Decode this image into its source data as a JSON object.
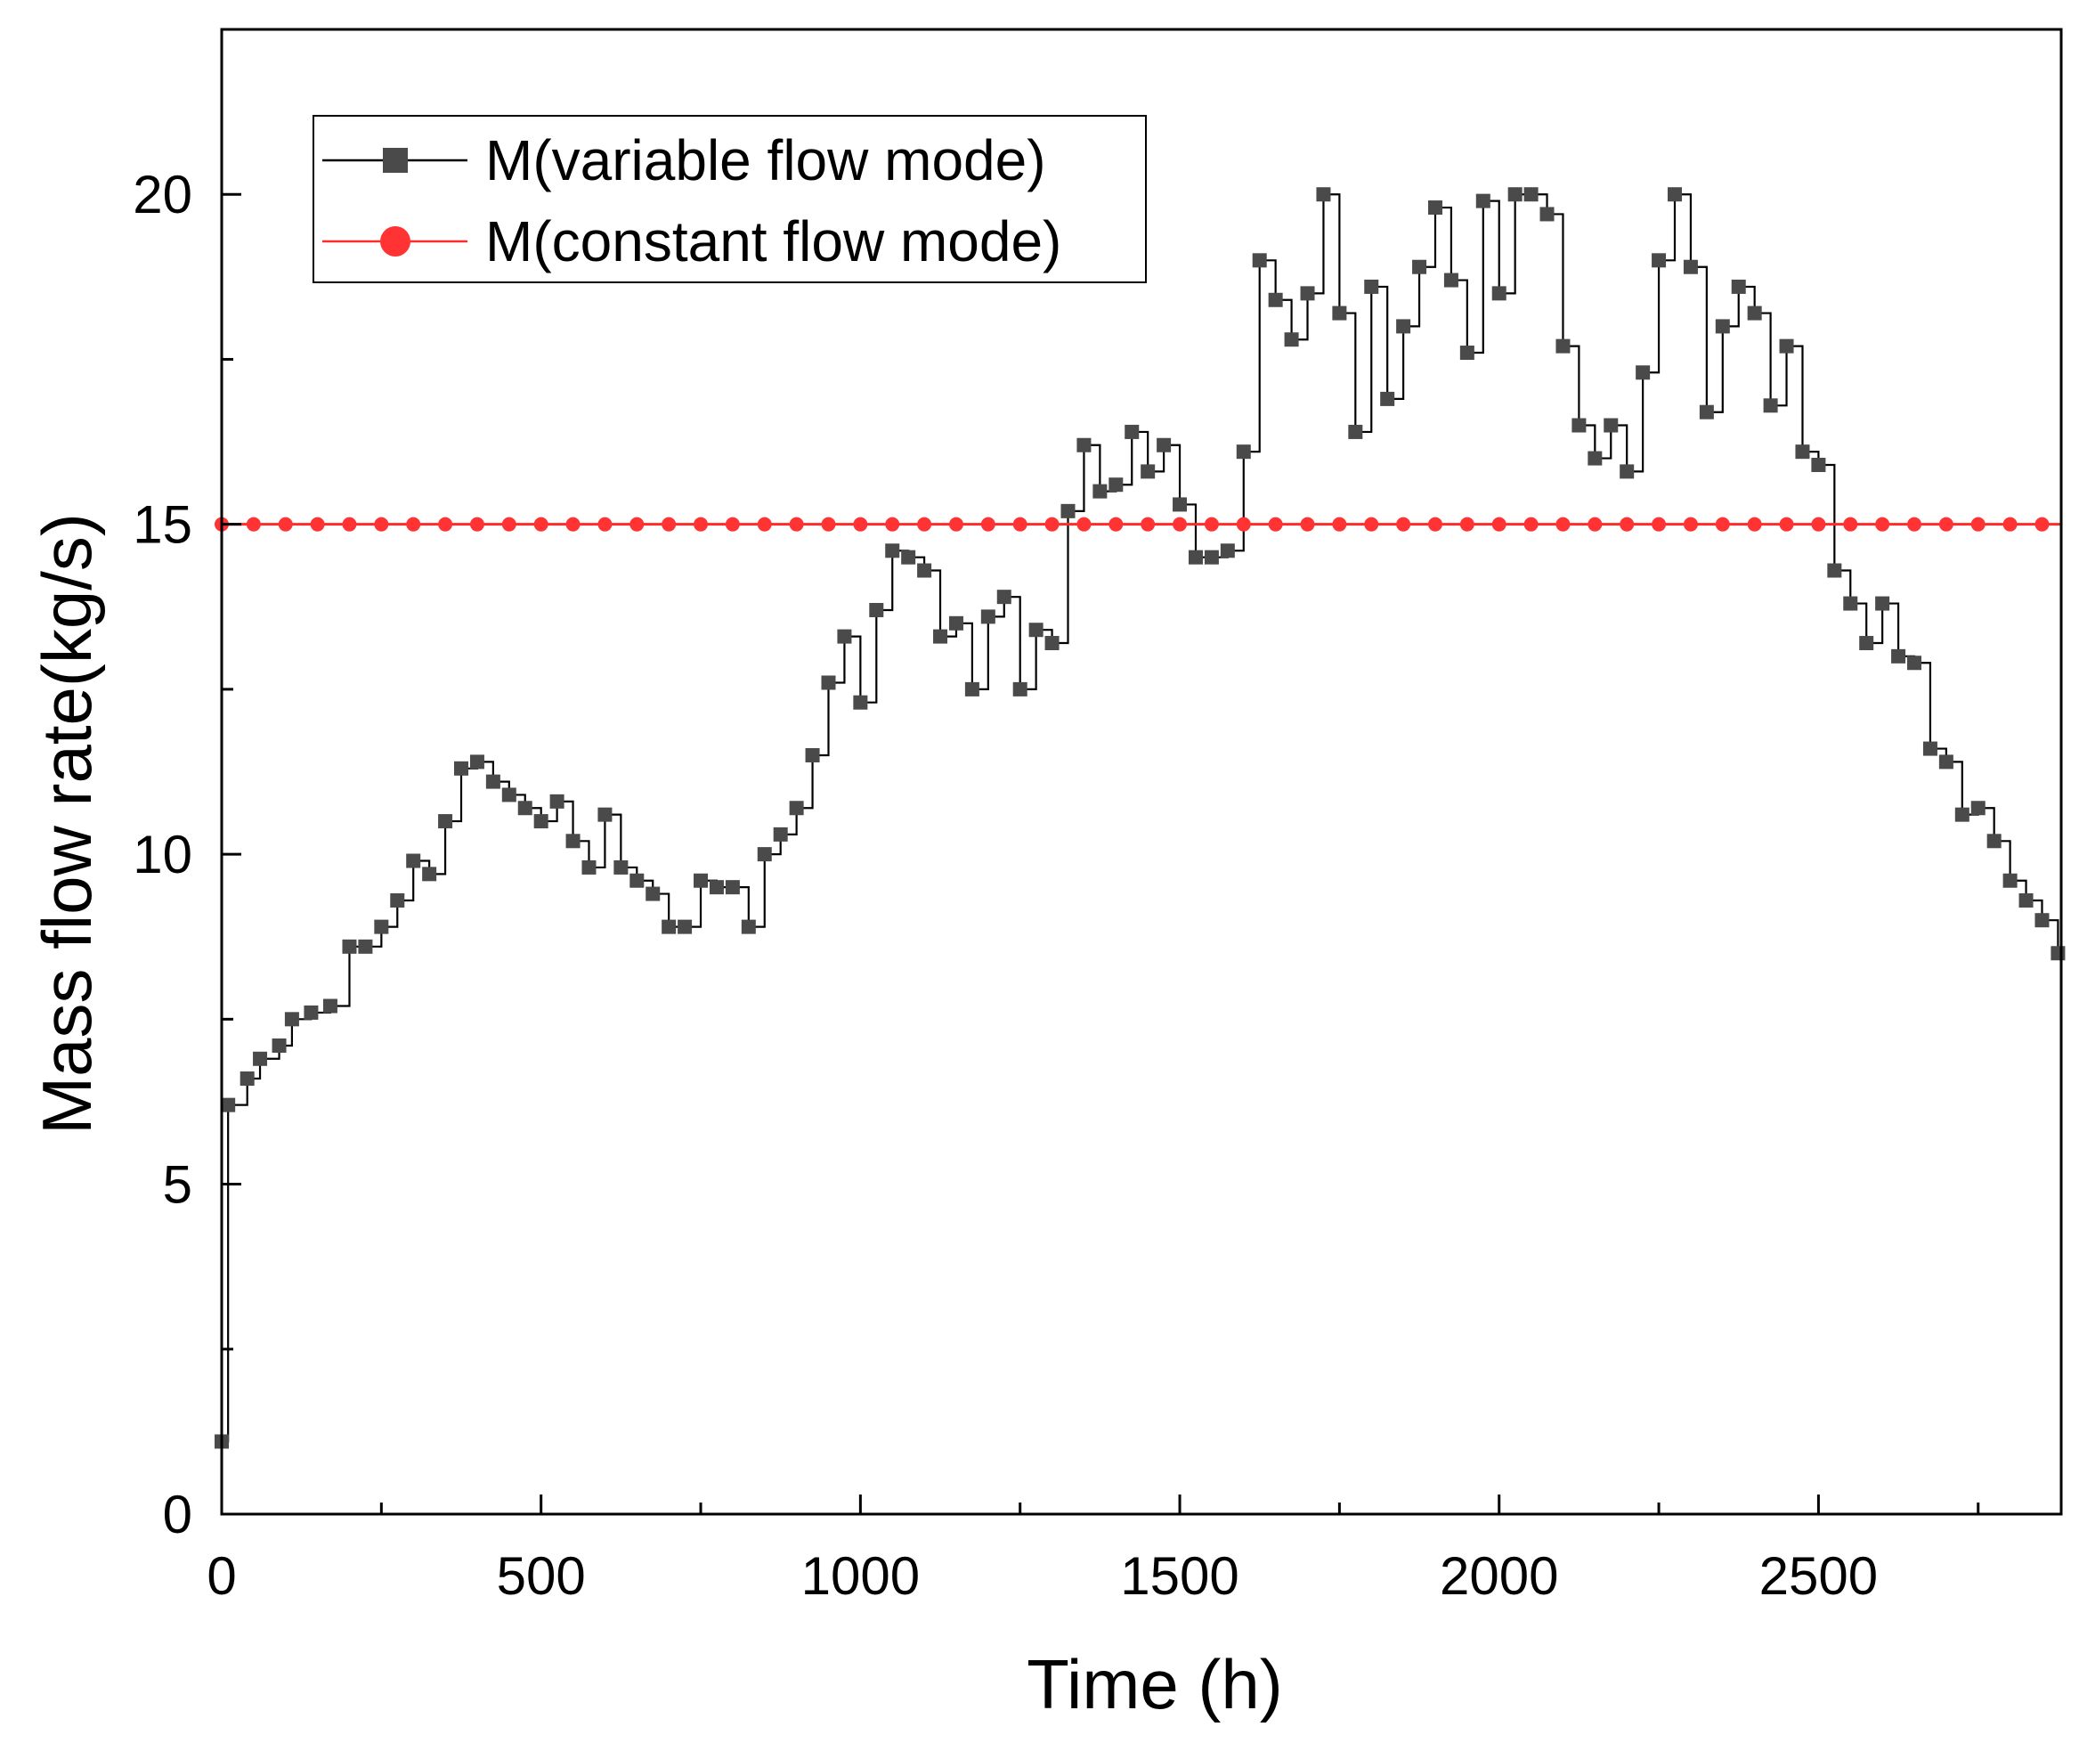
{
  "chart_data": {
    "type": "line",
    "xlabel": "Time (h)",
    "ylabel": "Mass flow rate(kg/s)",
    "xlim": [
      0,
      2880
    ],
    "ylim": [
      0,
      22.5
    ],
    "x_ticks": [
      "0",
      "500",
      "1000",
      "1500",
      "2000",
      "2500"
    ],
    "y_ticks": [
      "0",
      "5",
      "10",
      "15",
      "20"
    ],
    "legend_position": "top-left",
    "series": [
      {
        "name": "M(variable flow mode)",
        "style": "step",
        "color": "#000000",
        "marker": "square",
        "marker_color": "#4a4a4a",
        "x": [
          0,
          10,
          40,
          60,
          90,
          110,
          140,
          170,
          200,
          225,
          250,
          275,
          300,
          325,
          350,
          375,
          400,
          425,
          450,
          475,
          500,
          525,
          550,
          575,
          600,
          625,
          650,
          675,
          700,
          725,
          750,
          775,
          800,
          825,
          850,
          875,
          900,
          925,
          950,
          975,
          1000,
          1025,
          1050,
          1075,
          1100,
          1125,
          1150,
          1175,
          1200,
          1225,
          1250,
          1275,
          1300,
          1325,
          1350,
          1375,
          1400,
          1425,
          1450,
          1475,
          1500,
          1525,
          1550,
          1575,
          1600,
          1625,
          1650,
          1675,
          1700,
          1725,
          1750,
          1775,
          1800,
          1825,
          1850,
          1875,
          1900,
          1925,
          1950,
          1975,
          2000,
          2025,
          2050,
          2075,
          2100,
          2125,
          2150,
          2175,
          2200,
          2225,
          2250,
          2275,
          2300,
          2325,
          2350,
          2375,
          2400,
          2425,
          2450,
          2475,
          2500,
          2525,
          2550,
          2575,
          2600,
          2625,
          2650,
          2675,
          2700,
          2725,
          2750,
          2775,
          2800,
          2825,
          2850,
          2875
        ],
        "values": [
          1.1,
          6.2,
          6.6,
          6.9,
          7.1,
          7.5,
          7.6,
          7.7,
          8.6,
          8.6,
          8.9,
          9.3,
          9.9,
          9.7,
          10.5,
          11.3,
          11.4,
          11.1,
          10.9,
          10.7,
          10.5,
          10.8,
          10.2,
          9.8,
          10.6,
          9.8,
          9.6,
          9.4,
          8.9,
          8.9,
          9.6,
          9.5,
          9.5,
          8.9,
          10.0,
          10.3,
          10.7,
          11.5,
          12.6,
          13.3,
          12.3,
          13.7,
          14.6,
          14.5,
          14.3,
          13.3,
          13.5,
          12.5,
          13.6,
          13.9,
          12.5,
          13.4,
          13.2,
          15.2,
          16.2,
          15.5,
          15.6,
          16.4,
          15.8,
          16.2,
          15.3,
          14.5,
          14.5,
          14.6,
          16.1,
          19.0,
          18.4,
          17.8,
          18.5,
          20.0,
          18.2,
          16.4,
          18.6,
          16.9,
          18.0,
          18.9,
          19.8,
          18.7,
          17.6,
          19.9,
          18.5,
          20.0,
          20.0,
          19.7,
          17.7,
          16.5,
          16.0,
          16.5,
          15.8,
          17.3,
          19.0,
          20.0,
          18.9,
          16.7,
          18.0,
          18.6,
          18.2,
          16.8,
          17.7,
          16.1,
          15.9,
          14.3,
          13.8,
          13.2,
          13.8,
          13.0,
          12.9,
          11.6,
          11.4,
          10.6,
          10.7,
          10.2,
          9.6,
          9.3,
          9.0,
          8.5
        ]
      },
      {
        "name": "M(constant flow mode)",
        "style": "line",
        "color": "#ff2a2a",
        "marker": "circle",
        "marker_color": "#ff3333",
        "x": [
          0,
          50,
          100,
          150,
          200,
          250,
          300,
          350,
          400,
          450,
          500,
          550,
          600,
          650,
          700,
          750,
          800,
          850,
          900,
          950,
          1000,
          1050,
          1100,
          1150,
          1200,
          1250,
          1300,
          1350,
          1400,
          1450,
          1500,
          1550,
          1600,
          1650,
          1700,
          1750,
          1800,
          1850,
          1900,
          1950,
          2000,
          2050,
          2100,
          2150,
          2200,
          2250,
          2300,
          2350,
          2400,
          2450,
          2500,
          2550,
          2600,
          2650,
          2700,
          2750,
          2800,
          2850
        ],
        "values": [
          15,
          15,
          15,
          15,
          15,
          15,
          15,
          15,
          15,
          15,
          15,
          15,
          15,
          15,
          15,
          15,
          15,
          15,
          15,
          15,
          15,
          15,
          15,
          15,
          15,
          15,
          15,
          15,
          15,
          15,
          15,
          15,
          15,
          15,
          15,
          15,
          15,
          15,
          15,
          15,
          15,
          15,
          15,
          15,
          15,
          15,
          15,
          15,
          15,
          15,
          15,
          15,
          15,
          15,
          15,
          15,
          15,
          15
        ]
      }
    ]
  }
}
